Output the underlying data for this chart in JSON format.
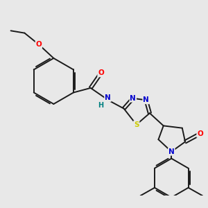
{
  "bg_color": "#e8e8e8",
  "bond_color": "#1a1a1a",
  "atom_colors": {
    "O": "#ff0000",
    "N": "#0000cd",
    "S": "#cccc00",
    "H": "#008080",
    "C": "#1a1a1a"
  },
  "line_width": 1.4,
  "font_size": 7.5,
  "fig_width": 3.0,
  "fig_height": 3.0,
  "dpi": 100
}
